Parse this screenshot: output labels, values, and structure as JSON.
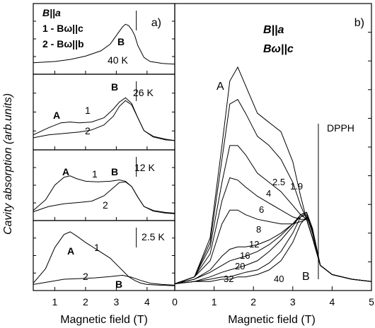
{
  "figure": {
    "y_axis_label": "Cavity absorption (arb.units)",
    "panel_a_xlabel": "Magnetic field (T)",
    "panel_b_xlabel": "Magnetic field (T)"
  },
  "chart_data": [
    {
      "id": "a-40K",
      "type": "line",
      "panel": "a)",
      "temperature": "40 K",
      "legend": [
        "B||a",
        "1 - Bω||c",
        "2 - Bω||b"
      ],
      "peak_label": "B",
      "xlim": [
        0.3,
        4.9
      ],
      "ylim": [
        0,
        1
      ],
      "dpph_marker_x": 3.65,
      "series": [
        {
          "x": [
            0.3,
            1.0,
            1.5,
            2.0,
            2.5,
            2.8,
            3.0,
            3.2,
            3.3,
            3.4,
            3.5,
            3.6,
            3.7,
            3.9,
            4.1,
            4.5,
            4.9
          ],
          "values": [
            0.14,
            0.16,
            0.19,
            0.24,
            0.32,
            0.42,
            0.55,
            0.68,
            0.72,
            0.7,
            0.64,
            0.55,
            0.4,
            0.22,
            0.16,
            0.13,
            0.12
          ]
        }
      ]
    },
    {
      "id": "a-26K",
      "type": "line",
      "temperature": "26 K",
      "labels": [
        "A",
        "1",
        "2",
        "B"
      ],
      "xlim": [
        0.3,
        4.9
      ],
      "ylim": [
        0,
        1
      ],
      "dpph_marker_x": 3.65,
      "series": [
        {
          "name": "1",
          "x": [
            0.3,
            0.8,
            1.2,
            1.5,
            1.8,
            2.2,
            2.6,
            2.9,
            3.1,
            3.3,
            3.5,
            3.7,
            3.9,
            4.2,
            4.6,
            4.9
          ],
          "values": [
            0.18,
            0.28,
            0.35,
            0.36,
            0.35,
            0.36,
            0.42,
            0.54,
            0.64,
            0.7,
            0.62,
            0.42,
            0.24,
            0.16,
            0.12,
            0.1
          ]
        },
        {
          "name": "2",
          "x": [
            0.3,
            0.8,
            1.3,
            1.8,
            2.2,
            2.6,
            2.9,
            3.1,
            3.3,
            3.5,
            3.7,
            3.9,
            4.2,
            4.6,
            4.9
          ],
          "values": [
            0.14,
            0.18,
            0.2,
            0.22,
            0.25,
            0.32,
            0.44,
            0.58,
            0.66,
            0.6,
            0.42,
            0.24,
            0.15,
            0.11,
            0.1
          ]
        }
      ]
    },
    {
      "id": "a-12K",
      "type": "line",
      "temperature": "12 K",
      "labels": [
        "A",
        "1",
        "B",
        "2"
      ],
      "xlim": [
        0.3,
        4.9
      ],
      "ylim": [
        0,
        1
      ],
      "dpph_marker_x": 3.65,
      "series": [
        {
          "name": "1",
          "x": [
            0.3,
            0.7,
            1.0,
            1.3,
            1.5,
            1.7,
            2.0,
            2.4,
            2.8,
            3.1,
            3.3,
            3.5,
            3.7,
            3.9,
            4.2,
            4.6,
            4.9
          ],
          "values": [
            0.12,
            0.28,
            0.5,
            0.62,
            0.64,
            0.6,
            0.56,
            0.55,
            0.56,
            0.58,
            0.56,
            0.48,
            0.32,
            0.18,
            0.12,
            0.09,
            0.08
          ]
        },
        {
          "name": "2",
          "x": [
            0.3,
            0.8,
            1.3,
            1.8,
            2.2,
            2.6,
            2.9,
            3.1,
            3.3,
            3.5,
            3.7,
            3.9,
            4.2,
            4.6,
            4.9
          ],
          "values": [
            0.1,
            0.18,
            0.22,
            0.24,
            0.26,
            0.34,
            0.46,
            0.54,
            0.55,
            0.48,
            0.32,
            0.18,
            0.11,
            0.08,
            0.07
          ]
        }
      ]
    },
    {
      "id": "a-2.5K",
      "type": "line",
      "temperature": "2.5 K",
      "labels": [
        "A",
        "1",
        "2",
        "B"
      ],
      "xlim": [
        0.3,
        4.9
      ],
      "ylim": [
        0,
        1
      ],
      "dpph_marker_x": 3.65,
      "series": [
        {
          "name": "1",
          "x": [
            0.3,
            0.7,
            1.0,
            1.3,
            1.5,
            1.7,
            2.0,
            2.4,
            2.8,
            3.1,
            3.4,
            3.6,
            3.8,
            4.0,
            4.4,
            4.9
          ],
          "values": [
            0.08,
            0.3,
            0.62,
            0.82,
            0.86,
            0.8,
            0.7,
            0.58,
            0.46,
            0.32,
            0.18,
            0.12,
            0.08,
            0.06,
            0.05,
            0.04
          ]
        },
        {
          "name": "2",
          "x": [
            0.3,
            0.8,
            1.3,
            1.8,
            2.3,
            2.8,
            3.2,
            3.5,
            3.8,
            4.1,
            4.5,
            4.9
          ],
          "values": [
            0.06,
            0.1,
            0.14,
            0.15,
            0.16,
            0.18,
            0.2,
            0.17,
            0.12,
            0.08,
            0.06,
            0.05
          ]
        }
      ]
    },
    {
      "id": "b",
      "type": "line",
      "panel": "b)",
      "legend": [
        "B||a",
        "Bω||c"
      ],
      "xlabel": "Magnetic field (T)",
      "xlim": [
        0,
        5
      ],
      "xticks": [
        0,
        1,
        2,
        3,
        4,
        5
      ],
      "ylim": [
        0,
        1
      ],
      "peak_labels": [
        "A",
        "B"
      ],
      "dpph_label": "DPPH",
      "dpph_x": 3.65,
      "temperatures": [
        "1.9",
        "2.5",
        "4",
        "6",
        "8",
        "12",
        "16",
        "20",
        "32",
        "40"
      ],
      "series": [
        {
          "name": "1.9",
          "x": [
            0,
            0.5,
            0.9,
            1.2,
            1.4,
            1.6,
            1.8,
            2.1,
            2.4,
            2.7,
            3.0,
            3.2,
            3.35,
            3.5,
            3.7,
            4.0,
            4.5,
            5.0
          ],
          "values": [
            0.02,
            0.05,
            0.22,
            0.62,
            0.9,
            0.96,
            0.88,
            0.76,
            0.72,
            0.68,
            0.55,
            0.4,
            0.3,
            0.22,
            0.1,
            0.06,
            0.04,
            0.03
          ]
        },
        {
          "name": "2.5",
          "x": [
            0,
            0.5,
            0.9,
            1.2,
            1.4,
            1.6,
            1.8,
            2.1,
            2.4,
            2.7,
            3.0,
            3.2,
            3.35,
            3.5,
            3.7,
            4.0,
            4.5,
            5.0
          ],
          "values": [
            0.02,
            0.05,
            0.2,
            0.56,
            0.8,
            0.82,
            0.76,
            0.66,
            0.62,
            0.56,
            0.46,
            0.36,
            0.3,
            0.22,
            0.1,
            0.06,
            0.04,
            0.03
          ]
        },
        {
          "name": "4",
          "x": [
            0,
            0.5,
            0.9,
            1.2,
            1.4,
            1.6,
            1.8,
            2.1,
            2.4,
            2.7,
            3.0,
            3.2,
            3.35,
            3.5,
            3.7,
            4.0,
            4.5,
            5.0
          ],
          "values": [
            0.02,
            0.05,
            0.18,
            0.46,
            0.62,
            0.62,
            0.58,
            0.5,
            0.46,
            0.42,
            0.36,
            0.32,
            0.3,
            0.22,
            0.1,
            0.06,
            0.04,
            0.03
          ]
        },
        {
          "name": "6",
          "x": [
            0,
            0.5,
            0.9,
            1.2,
            1.4,
            1.6,
            1.8,
            2.1,
            2.4,
            2.7,
            3.0,
            3.2,
            3.35,
            3.5,
            3.7,
            4.0,
            4.5,
            5.0
          ],
          "values": [
            0.02,
            0.05,
            0.15,
            0.38,
            0.48,
            0.47,
            0.44,
            0.4,
            0.37,
            0.34,
            0.31,
            0.3,
            0.3,
            0.22,
            0.1,
            0.06,
            0.04,
            0.03
          ]
        },
        {
          "name": "8",
          "x": [
            0,
            0.5,
            0.9,
            1.2,
            1.4,
            1.6,
            1.8,
            2.1,
            2.4,
            2.7,
            3.0,
            3.2,
            3.35,
            3.5,
            3.7,
            4.0,
            4.5,
            5.0
          ],
          "values": [
            0.02,
            0.05,
            0.12,
            0.28,
            0.34,
            0.34,
            0.32,
            0.3,
            0.29,
            0.28,
            0.28,
            0.29,
            0.3,
            0.22,
            0.1,
            0.06,
            0.04,
            0.03
          ]
        },
        {
          "name": "12",
          "x": [
            0,
            0.5,
            0.9,
            1.2,
            1.4,
            1.6,
            1.8,
            2.1,
            2.4,
            2.7,
            3.0,
            3.2,
            3.35,
            3.5,
            3.7,
            4.0,
            4.5,
            5.0
          ],
          "values": [
            0.02,
            0.04,
            0.08,
            0.14,
            0.17,
            0.18,
            0.18,
            0.19,
            0.21,
            0.24,
            0.28,
            0.31,
            0.32,
            0.24,
            0.1,
            0.06,
            0.04,
            0.03
          ]
        },
        {
          "name": "16",
          "x": [
            0,
            0.5,
            0.9,
            1.2,
            1.4,
            1.6,
            1.8,
            2.1,
            2.4,
            2.7,
            3.0,
            3.2,
            3.35,
            3.5,
            3.7,
            4.0,
            4.5,
            5.0
          ],
          "values": [
            0.02,
            0.04,
            0.07,
            0.1,
            0.12,
            0.13,
            0.14,
            0.16,
            0.19,
            0.23,
            0.28,
            0.32,
            0.33,
            0.25,
            0.1,
            0.06,
            0.04,
            0.03
          ]
        },
        {
          "name": "20",
          "x": [
            0,
            0.5,
            0.9,
            1.2,
            1.4,
            1.6,
            1.8,
            2.1,
            2.4,
            2.7,
            3.0,
            3.2,
            3.35,
            3.5,
            3.7,
            4.0,
            4.5,
            5.0
          ],
          "values": [
            0.02,
            0.03,
            0.05,
            0.07,
            0.08,
            0.09,
            0.1,
            0.12,
            0.16,
            0.21,
            0.27,
            0.32,
            0.33,
            0.26,
            0.1,
            0.06,
            0.04,
            0.03
          ]
        },
        {
          "name": "32",
          "x": [
            0,
            0.5,
            0.9,
            1.2,
            1.4,
            1.6,
            1.8,
            2.1,
            2.4,
            2.7,
            3.0,
            3.2,
            3.35,
            3.5,
            3.7,
            4.0,
            4.5,
            5.0
          ],
          "values": [
            0.02,
            0.03,
            0.04,
            0.05,
            0.05,
            0.06,
            0.07,
            0.08,
            0.11,
            0.16,
            0.24,
            0.31,
            0.33,
            0.26,
            0.1,
            0.06,
            0.04,
            0.03
          ]
        },
        {
          "name": "40",
          "x": [
            0,
            0.5,
            0.9,
            1.2,
            1.4,
            1.6,
            1.8,
            2.1,
            2.4,
            2.7,
            3.0,
            3.2,
            3.35,
            3.5,
            3.7,
            4.0,
            4.5,
            5.0
          ],
          "values": [
            0.02,
            0.03,
            0.03,
            0.04,
            0.04,
            0.05,
            0.05,
            0.06,
            0.08,
            0.12,
            0.2,
            0.28,
            0.31,
            0.25,
            0.1,
            0.06,
            0.04,
            0.03
          ]
        }
      ]
    }
  ]
}
